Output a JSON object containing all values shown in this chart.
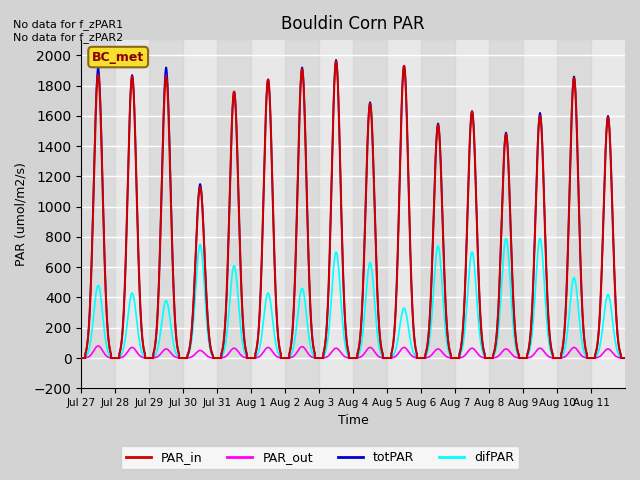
{
  "title": "Bouldin Corn PAR",
  "ylabel": "PAR (umol/m2/s)",
  "xlabel": "Time",
  "text_no_data": "No data for f_zPAR1\nNo data for f_zPAR2",
  "legend_label": "BC_met",
  "ylim": [
    -200,
    2100
  ],
  "bg_color": "#d3d3d3",
  "plot_bg_color": "#e8e8e8",
  "colors": {
    "PAR_in": "#cc0000",
    "PAR_out": "#ff00ff",
    "totPAR": "#0000cc",
    "difPAR": "#00ffff"
  },
  "day_peaks": {
    "0": {
      "totPAR": 1920,
      "PAR_in": 1870,
      "difPAR": 480,
      "PAR_out": 80
    },
    "1": {
      "totPAR": 1870,
      "PAR_in": 1860,
      "difPAR": 430,
      "PAR_out": 70
    },
    "2": {
      "totPAR": 1920,
      "PAR_in": 1860,
      "difPAR": 380,
      "PAR_out": 60
    },
    "3": {
      "totPAR": 1150,
      "PAR_in": 1130,
      "difPAR": 750,
      "PAR_out": 50
    },
    "4": {
      "totPAR": 1760,
      "PAR_in": 1760,
      "difPAR": 610,
      "PAR_out": 65
    },
    "5": {
      "totPAR": 1840,
      "PAR_in": 1840,
      "difPAR": 430,
      "PAR_out": 70
    },
    "6": {
      "totPAR": 1920,
      "PAR_in": 1910,
      "difPAR": 460,
      "PAR_out": 75
    },
    "7": {
      "totPAR": 1970,
      "PAR_in": 1960,
      "difPAR": 700,
      "PAR_out": 65
    },
    "8": {
      "totPAR": 1690,
      "PAR_in": 1680,
      "difPAR": 630,
      "PAR_out": 70
    },
    "9": {
      "totPAR": 1930,
      "PAR_in": 1930,
      "difPAR": 330,
      "PAR_out": 70
    },
    "10": {
      "totPAR": 1550,
      "PAR_in": 1540,
      "difPAR": 740,
      "PAR_out": 60
    },
    "11": {
      "totPAR": 1630,
      "PAR_in": 1630,
      "difPAR": 700,
      "PAR_out": 65
    },
    "12": {
      "totPAR": 1490,
      "PAR_in": 1480,
      "difPAR": 790,
      "PAR_out": 60
    },
    "13": {
      "totPAR": 1620,
      "PAR_in": 1600,
      "difPAR": 790,
      "PAR_out": 65
    },
    "14": {
      "totPAR": 1860,
      "PAR_in": 1850,
      "difPAR": 530,
      "PAR_out": 70
    },
    "15": {
      "totPAR": 1600,
      "PAR_in": 1590,
      "difPAR": 420,
      "PAR_out": 60
    }
  },
  "xtick_labels": [
    "Jul 27",
    "Jul 28",
    "Jul 29",
    "Jul 30",
    "Jul 31",
    "Aug 1",
    "Aug 2",
    "Aug 3",
    "Aug 4",
    "Aug 5",
    "Aug 6",
    "Aug 7",
    "Aug 8",
    "Aug 9",
    "Aug 10",
    "Aug 11"
  ],
  "xtick_positions": [
    0,
    1,
    2,
    3,
    4,
    5,
    6,
    7,
    8,
    9,
    10,
    11,
    12,
    13,
    14,
    15
  ],
  "total_days": 16
}
